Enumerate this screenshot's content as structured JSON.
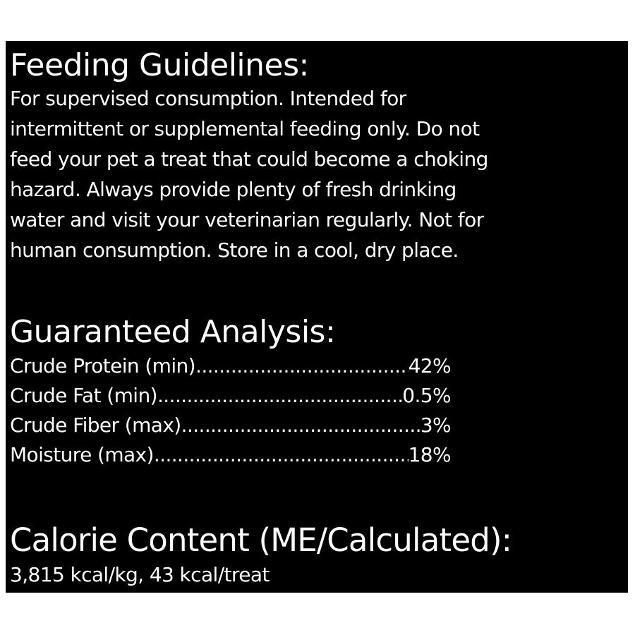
{
  "colors": {
    "background": "#000000",
    "text": "#ffffff"
  },
  "feeding": {
    "title": "Feeding Guidelines:",
    "lines": [
      "For supervised consumption. Intended for",
      "intermittent or supplemental feeding only. Do not",
      "feed your pet a treat that could become a choking",
      "hazard. Always provide plenty of fresh drinking",
      "water and visit your veterinarian regularly. Not for",
      "human consumption. Store in a cool, dry place."
    ]
  },
  "analysis": {
    "title": "Guaranteed Analysis:",
    "rows": [
      {
        "label": "Crude Protein (min)",
        "value": "42%"
      },
      {
        "label": "Crude Fat (min)",
        "value": "0.5%"
      },
      {
        "label": "Crude Fiber (max)",
        "value": "3%"
      },
      {
        "label": "Moisture (max)",
        "value": "18%"
      }
    ]
  },
  "calorie": {
    "title": "Calorie Content (ME/Calculated):",
    "text": "3,815 kcal/kg, 43 kcal/treat"
  }
}
